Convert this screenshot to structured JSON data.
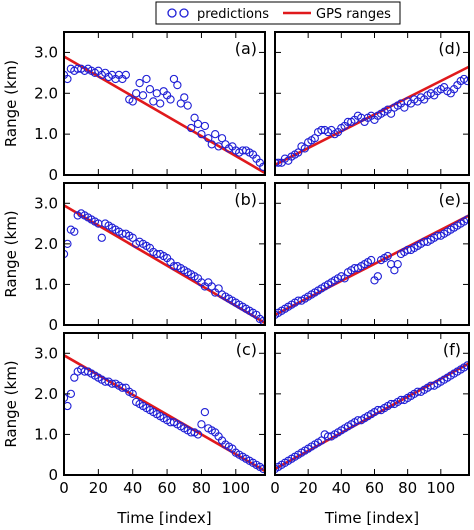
{
  "legend": {
    "predictions_label": "predictions",
    "gps_label": "GPS ranges"
  },
  "colors": {
    "predictions": "#1f1fd6",
    "gps": "#e0191c",
    "axes": "#000000"
  },
  "chart_data": [
    {
      "panel": "(a)",
      "type": "scatter",
      "xlabel": "",
      "ylabel": "Range (km)",
      "xlim": [
        0,
        117
      ],
      "ylim": [
        0,
        3.5
      ],
      "xticks": [],
      "yticks": [
        "0",
        "1.0",
        "2.0",
        "3.0"
      ],
      "gps_line": [
        [
          0,
          2.9
        ],
        [
          117,
          0.05
        ]
      ],
      "predictions": {
        "x": [
          0,
          2,
          4,
          6,
          8,
          10,
          12,
          14,
          16,
          18,
          20,
          22,
          24,
          26,
          28,
          30,
          32,
          34,
          36,
          38,
          40,
          42,
          44,
          46,
          48,
          50,
          52,
          54,
          56,
          58,
          60,
          62,
          64,
          66,
          68,
          70,
          72,
          74,
          76,
          78,
          80,
          82,
          84,
          86,
          88,
          90,
          92,
          94,
          96,
          98,
          100,
          102,
          104,
          106,
          108,
          110,
          112,
          114,
          116
        ],
        "y": [
          2.45,
          2.35,
          2.6,
          2.55,
          2.6,
          2.6,
          2.55,
          2.6,
          2.55,
          2.5,
          2.55,
          2.45,
          2.5,
          2.4,
          2.45,
          2.35,
          2.45,
          2.35,
          2.45,
          1.85,
          1.8,
          2.0,
          2.25,
          1.95,
          2.35,
          2.1,
          1.8,
          2.0,
          1.75,
          2.05,
          1.95,
          1.85,
          2.35,
          2.2,
          1.75,
          1.9,
          1.7,
          1.15,
          1.4,
          1.25,
          1.0,
          1.2,
          0.9,
          0.75,
          1.0,
          0.7,
          0.9,
          0.75,
          0.65,
          0.7,
          0.6,
          0.55,
          0.6,
          0.6,
          0.55,
          0.5,
          0.4,
          0.3,
          0.2
        ]
      }
    },
    {
      "panel": "(b)",
      "type": "scatter",
      "xlabel": "",
      "ylabel": "Range (km)",
      "xlim": [
        0,
        117
      ],
      "ylim": [
        0,
        3.5
      ],
      "xticks": [],
      "yticks": [
        "0",
        "1.0",
        "2.0",
        "3.0"
      ],
      "gps_line": [
        [
          0,
          2.95
        ],
        [
          117,
          0.05
        ]
      ],
      "predictions": {
        "x": [
          0,
          2,
          4,
          6,
          8,
          10,
          12,
          14,
          16,
          18,
          20,
          22,
          24,
          26,
          28,
          30,
          32,
          34,
          36,
          38,
          40,
          42,
          44,
          46,
          48,
          50,
          52,
          54,
          56,
          58,
          60,
          62,
          64,
          66,
          68,
          70,
          72,
          74,
          76,
          78,
          80,
          82,
          84,
          86,
          88,
          90,
          92,
          94,
          96,
          98,
          100,
          102,
          104,
          106,
          108,
          110,
          112,
          114,
          116
        ],
        "y": [
          1.75,
          2.0,
          2.35,
          2.3,
          2.7,
          2.75,
          2.7,
          2.65,
          2.6,
          2.55,
          2.5,
          2.15,
          2.5,
          2.45,
          2.4,
          2.35,
          2.3,
          2.25,
          2.25,
          2.2,
          2.15,
          2.0,
          2.05,
          2.0,
          1.95,
          1.9,
          1.8,
          1.75,
          1.75,
          1.7,
          1.65,
          1.55,
          1.45,
          1.45,
          1.4,
          1.35,
          1.3,
          1.25,
          1.2,
          1.15,
          1.05,
          0.95,
          1.05,
          0.95,
          0.8,
          0.9,
          0.75,
          0.7,
          0.65,
          0.6,
          0.55,
          0.5,
          0.45,
          0.4,
          0.35,
          0.3,
          0.25,
          0.15,
          0.1
        ]
      }
    },
    {
      "panel": "(c)",
      "type": "scatter",
      "xlabel": "Time [index]",
      "ylabel": "Range (km)",
      "xlim": [
        0,
        117
      ],
      "ylim": [
        0,
        3.5
      ],
      "xticks": [
        "0",
        "20",
        "40",
        "60",
        "80",
        "100"
      ],
      "yticks": [
        "0",
        "1.0",
        "2.0",
        "3.0"
      ],
      "gps_line": [
        [
          0,
          2.95
        ],
        [
          117,
          0.1
        ]
      ],
      "predictions": {
        "x": [
          0,
          2,
          4,
          6,
          8,
          10,
          12,
          14,
          16,
          18,
          20,
          22,
          24,
          26,
          28,
          30,
          32,
          34,
          36,
          38,
          40,
          42,
          44,
          46,
          48,
          50,
          52,
          54,
          56,
          58,
          60,
          62,
          64,
          66,
          68,
          70,
          72,
          74,
          76,
          78,
          80,
          82,
          84,
          86,
          88,
          90,
          92,
          94,
          96,
          98,
          100,
          102,
          104,
          106,
          108,
          110,
          112,
          114,
          116
        ],
        "y": [
          1.9,
          1.7,
          2.0,
          2.4,
          2.55,
          2.6,
          2.55,
          2.55,
          2.5,
          2.45,
          2.4,
          2.35,
          2.3,
          2.3,
          2.25,
          2.25,
          2.2,
          2.15,
          2.15,
          2.05,
          2.0,
          1.8,
          1.75,
          1.7,
          1.65,
          1.6,
          1.55,
          1.5,
          1.45,
          1.4,
          1.35,
          1.3,
          1.3,
          1.25,
          1.2,
          1.15,
          1.1,
          1.05,
          1.05,
          1.0,
          1.25,
          1.55,
          1.15,
          1.1,
          1.05,
          0.95,
          0.85,
          0.75,
          0.7,
          0.65,
          0.55,
          0.5,
          0.45,
          0.4,
          0.35,
          0.3,
          0.25,
          0.2,
          0.15
        ]
      }
    },
    {
      "panel": "(d)",
      "type": "scatter",
      "xlabel": "",
      "ylabel": "",
      "xlim": [
        0,
        117
      ],
      "ylim": [
        0,
        3.5
      ],
      "xticks": [],
      "yticks": [],
      "gps_line": [
        [
          0,
          0.25
        ],
        [
          117,
          2.65
        ]
      ],
      "predictions": {
        "x": [
          0,
          2,
          4,
          6,
          8,
          10,
          12,
          14,
          16,
          18,
          20,
          22,
          24,
          26,
          28,
          30,
          32,
          34,
          36,
          38,
          40,
          42,
          44,
          46,
          48,
          50,
          52,
          54,
          56,
          58,
          60,
          62,
          64,
          66,
          68,
          70,
          72,
          74,
          76,
          78,
          80,
          82,
          84,
          86,
          88,
          90,
          92,
          94,
          96,
          98,
          100,
          102,
          104,
          106,
          108,
          110,
          112,
          114,
          116
        ],
        "y": [
          0.3,
          0.3,
          0.3,
          0.4,
          0.35,
          0.45,
          0.5,
          0.55,
          0.7,
          0.65,
          0.8,
          0.85,
          0.9,
          1.05,
          1.1,
          1.1,
          1.05,
          1.1,
          1.0,
          1.05,
          1.15,
          1.2,
          1.3,
          1.3,
          1.35,
          1.45,
          1.4,
          1.3,
          1.4,
          1.45,
          1.35,
          1.45,
          1.5,
          1.55,
          1.6,
          1.5,
          1.65,
          1.7,
          1.75,
          1.65,
          1.8,
          1.75,
          1.85,
          1.8,
          1.9,
          1.85,
          1.95,
          2.0,
          1.95,
          2.05,
          2.1,
          2.15,
          2.05,
          2.0,
          2.1,
          2.2,
          2.3,
          2.35,
          2.3
        ]
      }
    },
    {
      "panel": "(e)",
      "type": "scatter",
      "xlabel": "",
      "ylabel": "",
      "xlim": [
        0,
        117
      ],
      "ylim": [
        0,
        3.5
      ],
      "xticks": [],
      "yticks": [],
      "gps_line": [
        [
          0,
          0.25
        ],
        [
          117,
          2.7
        ]
      ],
      "predictions": {
        "x": [
          0,
          2,
          4,
          6,
          8,
          10,
          12,
          14,
          16,
          18,
          20,
          22,
          24,
          26,
          28,
          30,
          32,
          34,
          36,
          38,
          40,
          42,
          44,
          46,
          48,
          50,
          52,
          54,
          56,
          58,
          60,
          62,
          64,
          66,
          68,
          70,
          72,
          74,
          76,
          78,
          80,
          82,
          84,
          86,
          88,
          90,
          92,
          94,
          96,
          98,
          100,
          102,
          104,
          106,
          108,
          110,
          112,
          114,
          116
        ],
        "y": [
          0.25,
          0.3,
          0.35,
          0.4,
          0.45,
          0.5,
          0.55,
          0.6,
          0.6,
          0.65,
          0.7,
          0.75,
          0.8,
          0.85,
          0.9,
          0.95,
          1.0,
          1.05,
          1.1,
          1.15,
          1.2,
          1.15,
          1.3,
          1.35,
          1.4,
          1.4,
          1.45,
          1.5,
          1.55,
          1.6,
          1.1,
          1.2,
          1.6,
          1.65,
          1.7,
          1.5,
          1.35,
          1.5,
          1.75,
          1.8,
          1.85,
          1.85,
          1.9,
          1.95,
          2.0,
          2.05,
          2.05,
          2.1,
          2.15,
          2.2,
          2.2,
          2.25,
          2.3,
          2.35,
          2.4,
          2.45,
          2.5,
          2.55,
          2.6
        ]
      }
    },
    {
      "panel": "(f)",
      "type": "scatter",
      "xlabel": "Time [index]",
      "ylabel": "",
      "xlim": [
        0,
        117
      ],
      "ylim": [
        0,
        3.5
      ],
      "xticks": [
        "0",
        "20",
        "40",
        "60",
        "80",
        "100"
      ],
      "yticks": [],
      "gps_line": [
        [
          0,
          0.15
        ],
        [
          117,
          2.75
        ]
      ],
      "predictions": {
        "x": [
          0,
          2,
          4,
          6,
          8,
          10,
          12,
          14,
          16,
          18,
          20,
          22,
          24,
          26,
          28,
          30,
          32,
          34,
          36,
          38,
          40,
          42,
          44,
          46,
          48,
          50,
          52,
          54,
          56,
          58,
          60,
          62,
          64,
          66,
          68,
          70,
          72,
          74,
          76,
          78,
          80,
          82,
          84,
          86,
          88,
          90,
          92,
          94,
          96,
          98,
          100,
          102,
          104,
          106,
          108,
          110,
          112,
          114,
          116
        ],
        "y": [
          0.15,
          0.2,
          0.25,
          0.3,
          0.35,
          0.4,
          0.45,
          0.5,
          0.55,
          0.6,
          0.65,
          0.7,
          0.75,
          0.8,
          0.85,
          1.0,
          0.95,
          0.95,
          1.0,
          1.05,
          1.1,
          1.15,
          1.2,
          1.25,
          1.3,
          1.35,
          1.35,
          1.4,
          1.45,
          1.5,
          1.55,
          1.6,
          1.6,
          1.65,
          1.7,
          1.75,
          1.75,
          1.8,
          1.85,
          1.85,
          1.9,
          1.95,
          2.0,
          2.05,
          2.05,
          2.1,
          2.15,
          2.2,
          2.2,
          2.25,
          2.3,
          2.35,
          2.4,
          2.45,
          2.5,
          2.55,
          2.6,
          2.65,
          2.7
        ]
      }
    }
  ]
}
